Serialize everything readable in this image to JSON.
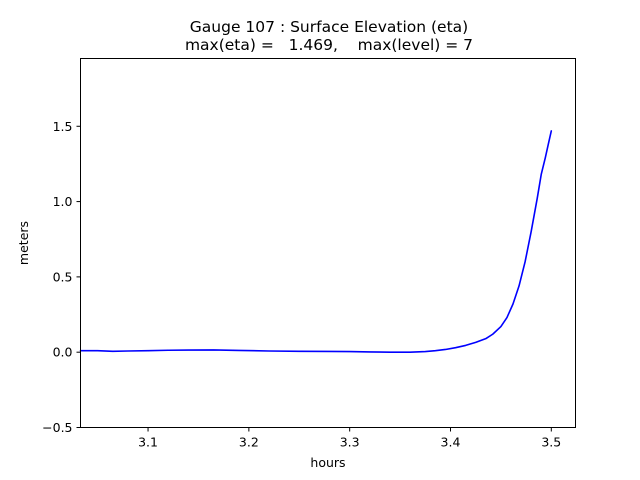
{
  "chart_data": {
    "type": "line",
    "title": "Gauge 107 : Surface Elevation (eta)",
    "subtitle": "max(eta) =   1.469,    max(level) = 7",
    "xlabel": "hours",
    "ylabel": "meters",
    "xlim": [
      3.033,
      3.524
    ],
    "ylim": [
      -0.5,
      1.95
    ],
    "xticks": [
      3.1,
      3.2,
      3.3,
      3.4,
      3.5
    ],
    "xtick_labels": [
      "3.1",
      "3.2",
      "3.3",
      "3.4",
      "3.5"
    ],
    "yticks": [
      -0.5,
      0.0,
      0.5,
      1.0,
      1.5
    ],
    "ytick_labels": [
      "−0.5",
      "0.0",
      "0.5",
      "1.0",
      "1.5"
    ],
    "grid": false,
    "series": [
      {
        "color": "#0000ff",
        "x": [
          3.033,
          3.05,
          3.065,
          3.08,
          3.1,
          3.12,
          3.14,
          3.165,
          3.19,
          3.22,
          3.25,
          3.28,
          3.3,
          3.32,
          3.34,
          3.36,
          3.375,
          3.385,
          3.395,
          3.405,
          3.415,
          3.425,
          3.435,
          3.442,
          3.45,
          3.456,
          3.462,
          3.468,
          3.474,
          3.48,
          3.486,
          3.49,
          3.494,
          3.497,
          3.5
        ],
        "y": [
          0.01,
          0.01,
          0.006,
          0.008,
          0.01,
          0.013,
          0.014,
          0.015,
          0.012,
          0.008,
          0.006,
          0.005,
          0.004,
          0.002,
          0.0,
          0.0,
          0.004,
          0.01,
          0.018,
          0.03,
          0.045,
          0.065,
          0.09,
          0.12,
          0.17,
          0.23,
          0.32,
          0.44,
          0.6,
          0.8,
          1.02,
          1.18,
          1.29,
          1.38,
          1.469
        ]
      }
    ]
  }
}
